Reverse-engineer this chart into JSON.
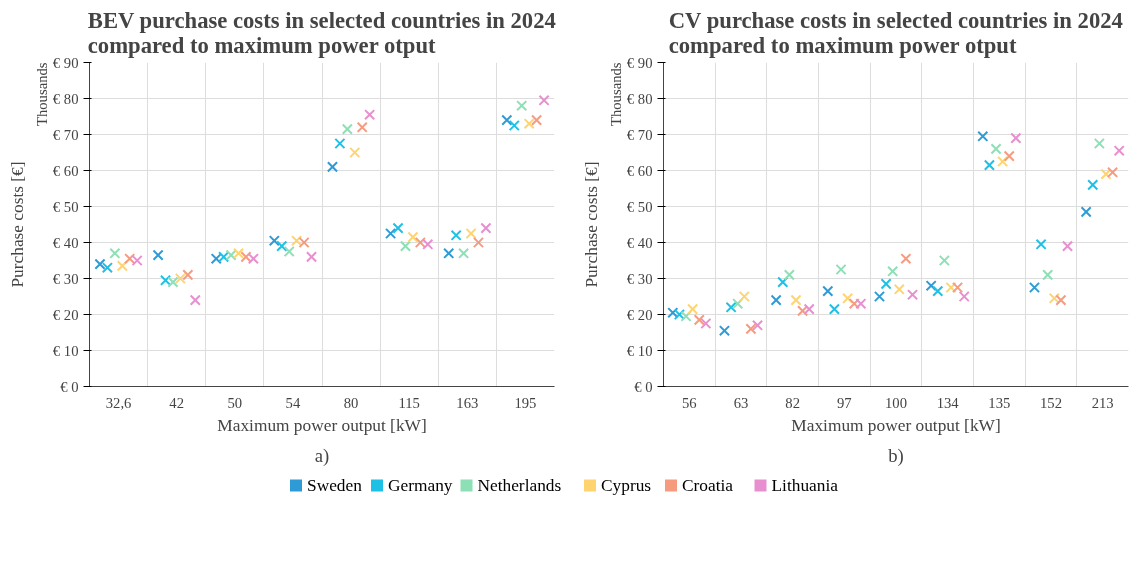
{
  "chart_data": [
    {
      "type": "scatter",
      "title": "BEV purchase costs in selected countries in 2024 compared to maximum power otput",
      "xlabel": "Maximum power output [kW]",
      "ylabel": "Purchase costs [€]",
      "annotations": [
        "Thousands",
        "a)"
      ],
      "categories": [
        "32,6",
        "42",
        "50",
        "54",
        "80",
        "115",
        "163",
        "195"
      ],
      "ylim": [
        0,
        90
      ],
      "yticks": [
        {
          "value": 0,
          "label": "€ 0"
        },
        {
          "value": 10,
          "label": "€ 10"
        },
        {
          "value": 20,
          "label": "€ 20"
        },
        {
          "value": 30,
          "label": "€ 30"
        },
        {
          "value": 40,
          "label": "€ 40"
        },
        {
          "value": 50,
          "label": "€ 50"
        },
        {
          "value": 60,
          "label": "€ 60"
        },
        {
          "value": 70,
          "label": "€ 70"
        },
        {
          "value": 80,
          "label": "€ 80"
        },
        {
          "value": 90,
          "label": "€ 90"
        }
      ],
      "grid": true,
      "legend": "bottom",
      "marker": "cross",
      "series": [
        {
          "name": "Sweden",
          "color": "#2e9bd6",
          "values": [
            34,
            36.5,
            35.5,
            40.5,
            61,
            42.5,
            37,
            74
          ]
        },
        {
          "name": "Germany",
          "color": "#1ec0e6",
          "values": [
            33,
            29.5,
            36,
            39,
            67.5,
            44,
            42,
            72.5
          ]
        },
        {
          "name": "Netherlands",
          "color": "#8de0b6",
          "values": [
            37,
            29,
            36.5,
            37.5,
            71.5,
            39,
            37,
            78
          ]
        },
        {
          "name": "Cyprus",
          "color": "#ffd470",
          "values": [
            33.5,
            30,
            37,
            40.5,
            65,
            41.5,
            42.5,
            73
          ]
        },
        {
          "name": "Croatia",
          "color": "#f79b7f",
          "values": [
            35.5,
            31,
            36,
            40,
            72,
            40,
            40,
            74
          ]
        },
        {
          "name": "Lithuania",
          "color": "#e88fd0",
          "values": [
            35,
            24,
            35.5,
            36,
            75.5,
            39.5,
            44,
            79.5
          ]
        }
      ]
    },
    {
      "type": "scatter",
      "title": "CV purchase costs in selected countries in 2024 compared to maximum power otput",
      "xlabel": "Maximum power output [kW]",
      "ylabel": "Purchase costs [€]",
      "annotations": [
        "Thousands",
        "b)"
      ],
      "categories": [
        "56",
        "63",
        "82",
        "97",
        "100",
        "134",
        "135",
        "152",
        "213"
      ],
      "ylim": [
        0,
        90
      ],
      "yticks": [
        {
          "value": 0,
          "label": "€ 0"
        },
        {
          "value": 10,
          "label": "€ 10"
        },
        {
          "value": 20,
          "label": "€ 20"
        },
        {
          "value": 30,
          "label": "€ 30"
        },
        {
          "value": 40,
          "label": "€ 40"
        },
        {
          "value": 50,
          "label": "€ 50"
        },
        {
          "value": 60,
          "label": "€ 60"
        },
        {
          "value": 70,
          "label": "€ 70"
        },
        {
          "value": 80,
          "label": "€ 80"
        },
        {
          "value": 90,
          "label": "€ 90"
        }
      ],
      "grid": true,
      "marker": "cross",
      "series": [
        {
          "color": "#2e9bd6",
          "values": [
            20.5,
            15.5,
            24,
            26.5,
            25,
            28,
            69.5,
            27.5,
            48.5
          ]
        },
        {
          "color": "#1ec0e6",
          "values": [
            20,
            22,
            29,
            21.5,
            28.5,
            26.5,
            61.5,
            39.5,
            56
          ]
        },
        {
          "color": "#8de0b6",
          "values": [
            19.5,
            23,
            31,
            32.5,
            32,
            35,
            66,
            31,
            67.5
          ]
        },
        {
          "color": "#ffd470",
          "values": [
            21.5,
            25,
            24,
            24.5,
            27,
            27.5,
            62.5,
            24.5,
            59
          ]
        },
        {
          "color": "#f79b7f",
          "values": [
            18.5,
            16,
            21,
            23,
            35.5,
            27.5,
            64,
            24,
            59.5
          ]
        },
        {
          "color": "#e88fd0",
          "values": [
            17.5,
            17,
            21.5,
            23,
            25.5,
            25,
            69,
            39,
            65.5
          ]
        }
      ]
    }
  ]
}
